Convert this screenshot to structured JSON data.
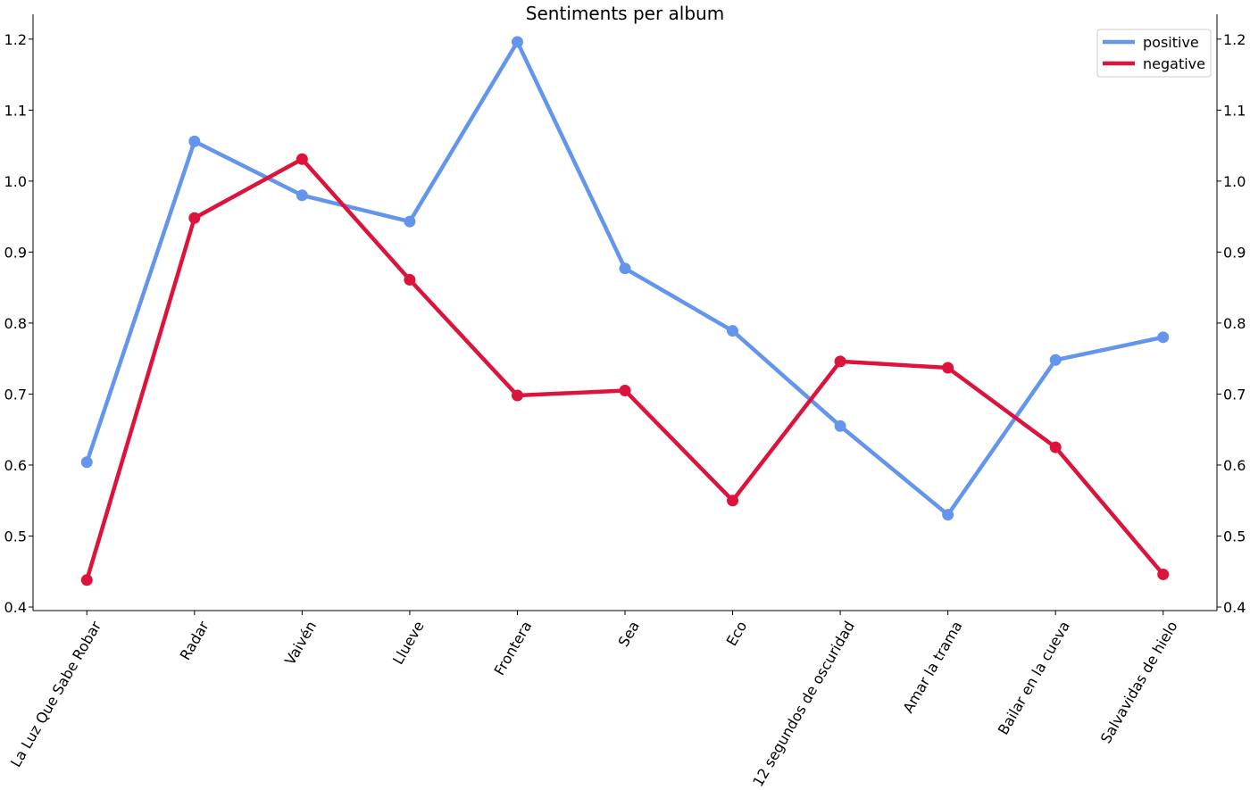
{
  "chart_data": {
    "type": "line",
    "title": "Sentiments per album",
    "xlabel": "",
    "ylabel": "",
    "categories": [
      "La Luz Que Sabe Robar",
      "Radar",
      "Vaivén",
      "Llueve",
      "Frontera",
      "Sea",
      "Eco",
      "12 segundos de oscuridad",
      "Amar la trama",
      "Bailar en la cueva",
      "Salvavidas de hielo"
    ],
    "series": [
      {
        "name": "positive",
        "color": "#6495ED",
        "values": [
          0.604,
          1.056,
          0.98,
          0.943,
          1.196,
          0.877,
          0.789,
          0.655,
          0.53,
          0.748,
          0.78
        ]
      },
      {
        "name": "negative",
        "color": "#DC143C",
        "values": [
          0.438,
          0.948,
          1.031,
          0.861,
          0.698,
          0.705,
          0.55,
          0.746,
          0.737,
          0.625,
          0.446
        ]
      }
    ],
    "ylim": [
      0.395,
      1.235
    ],
    "yticks": [
      "0.4",
      "0.5",
      "0.6",
      "0.7",
      "0.8",
      "0.9",
      "1.0",
      "1.1",
      "1.2"
    ],
    "grid": false,
    "legend": "top-right",
    "secondary_y_axis": true
  }
}
